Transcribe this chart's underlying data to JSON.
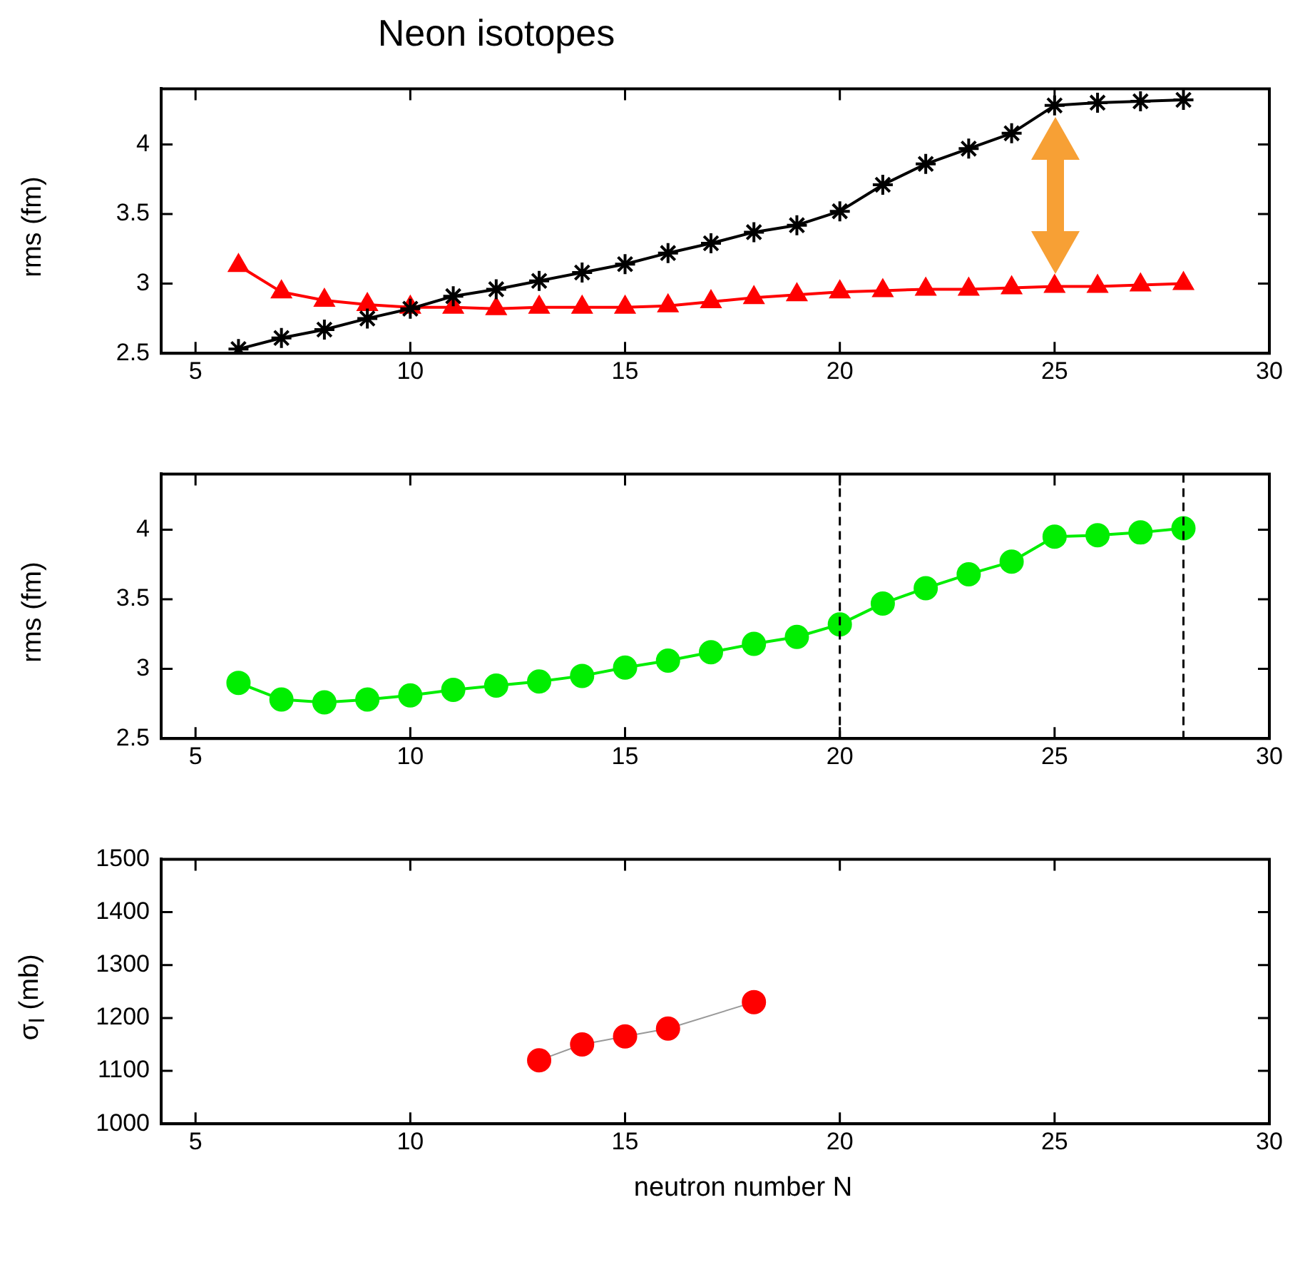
{
  "chart_data": [
    {
      "type": "line",
      "title": "Neon isotopes",
      "ylabel": "rms (fm)",
      "x": [
        6,
        7,
        8,
        9,
        10,
        11,
        12,
        13,
        14,
        15,
        16,
        17,
        18,
        19,
        20,
        21,
        22,
        23,
        24,
        25,
        26,
        27,
        28
      ],
      "xlim": [
        4.2,
        30
      ],
      "xticks": [
        5,
        10,
        15,
        20,
        25,
        30
      ],
      "ylim": [
        2.5,
        4.4
      ],
      "yticks": [
        2.5,
        3,
        3.5,
        4
      ],
      "grid": false,
      "legend": false,
      "line_style": "solid",
      "series": [
        {
          "color": "#000000",
          "marker": "cross",
          "values": [
            2.53,
            2.61,
            2.67,
            2.75,
            2.82,
            2.91,
            2.96,
            3.02,
            3.08,
            3.14,
            3.22,
            3.29,
            3.37,
            3.42,
            3.52,
            3.71,
            3.86,
            3.97,
            4.08,
            4.28,
            4.3,
            4.31,
            4.32
          ]
        },
        {
          "color": "#ff0000",
          "marker": "triangle",
          "values": [
            3.13,
            2.94,
            2.88,
            2.85,
            2.83,
            2.83,
            2.82,
            2.83,
            2.83,
            2.83,
            2.84,
            2.87,
            2.9,
            2.92,
            2.94,
            2.95,
            2.96,
            2.96,
            2.97,
            2.98,
            2.98,
            2.99,
            3.0
          ]
        }
      ]
    },
    {
      "type": "line",
      "ylabel": "rms (fm)",
      "x": [
        6,
        7,
        8,
        9,
        10,
        11,
        12,
        13,
        14,
        15,
        16,
        17,
        18,
        19,
        20,
        21,
        22,
        23,
        24,
        25,
        26,
        27,
        28
      ],
      "xlim": [
        4.2,
        30
      ],
      "xticks": [
        5,
        10,
        15,
        20,
        25,
        30
      ],
      "ylim": [
        2.5,
        4.4
      ],
      "yticks": [
        2.5,
        3,
        3.5,
        4
      ],
      "grid": false,
      "legend": false,
      "marker": "circle",
      "line_style": "solid",
      "series": [
        {
          "color": "#00ee00",
          "values": [
            2.9,
            2.78,
            2.76,
            2.78,
            2.81,
            2.85,
            2.88,
            2.91,
            2.95,
            3.01,
            3.06,
            3.12,
            3.18,
            3.23,
            3.32,
            3.47,
            3.58,
            3.68,
            3.77,
            3.95,
            3.96,
            3.98,
            4.01
          ]
        }
      ],
      "ref_lines": [
        {
          "axis": "x",
          "value": 20,
          "color": "#000000",
          "line_style": "dashed"
        },
        {
          "axis": "x",
          "value": 28,
          "color": "#000000",
          "line_style": "dashed"
        }
      ]
    },
    {
      "type": "line",
      "ylabel": "σ$_{I}$ (mb)",
      "xlabel": "neutron number N",
      "x": [
        13,
        14,
        15,
        16,
        18
      ],
      "xlim": [
        4.2,
        30
      ],
      "xticks": [
        5,
        10,
        15,
        20,
        25,
        30
      ],
      "ylim": [
        1000,
        1500
      ],
      "yticks": [
        1000,
        1100,
        1200,
        1300,
        1400,
        1500
      ],
      "grid": false,
      "legend": false,
      "marker": "circle",
      "line_style": "solid",
      "series": [
        {
          "color": "#ff0000",
          "values": [
            1120,
            1150,
            1165,
            1180,
            1230
          ]
        }
      ]
    }
  ]
}
